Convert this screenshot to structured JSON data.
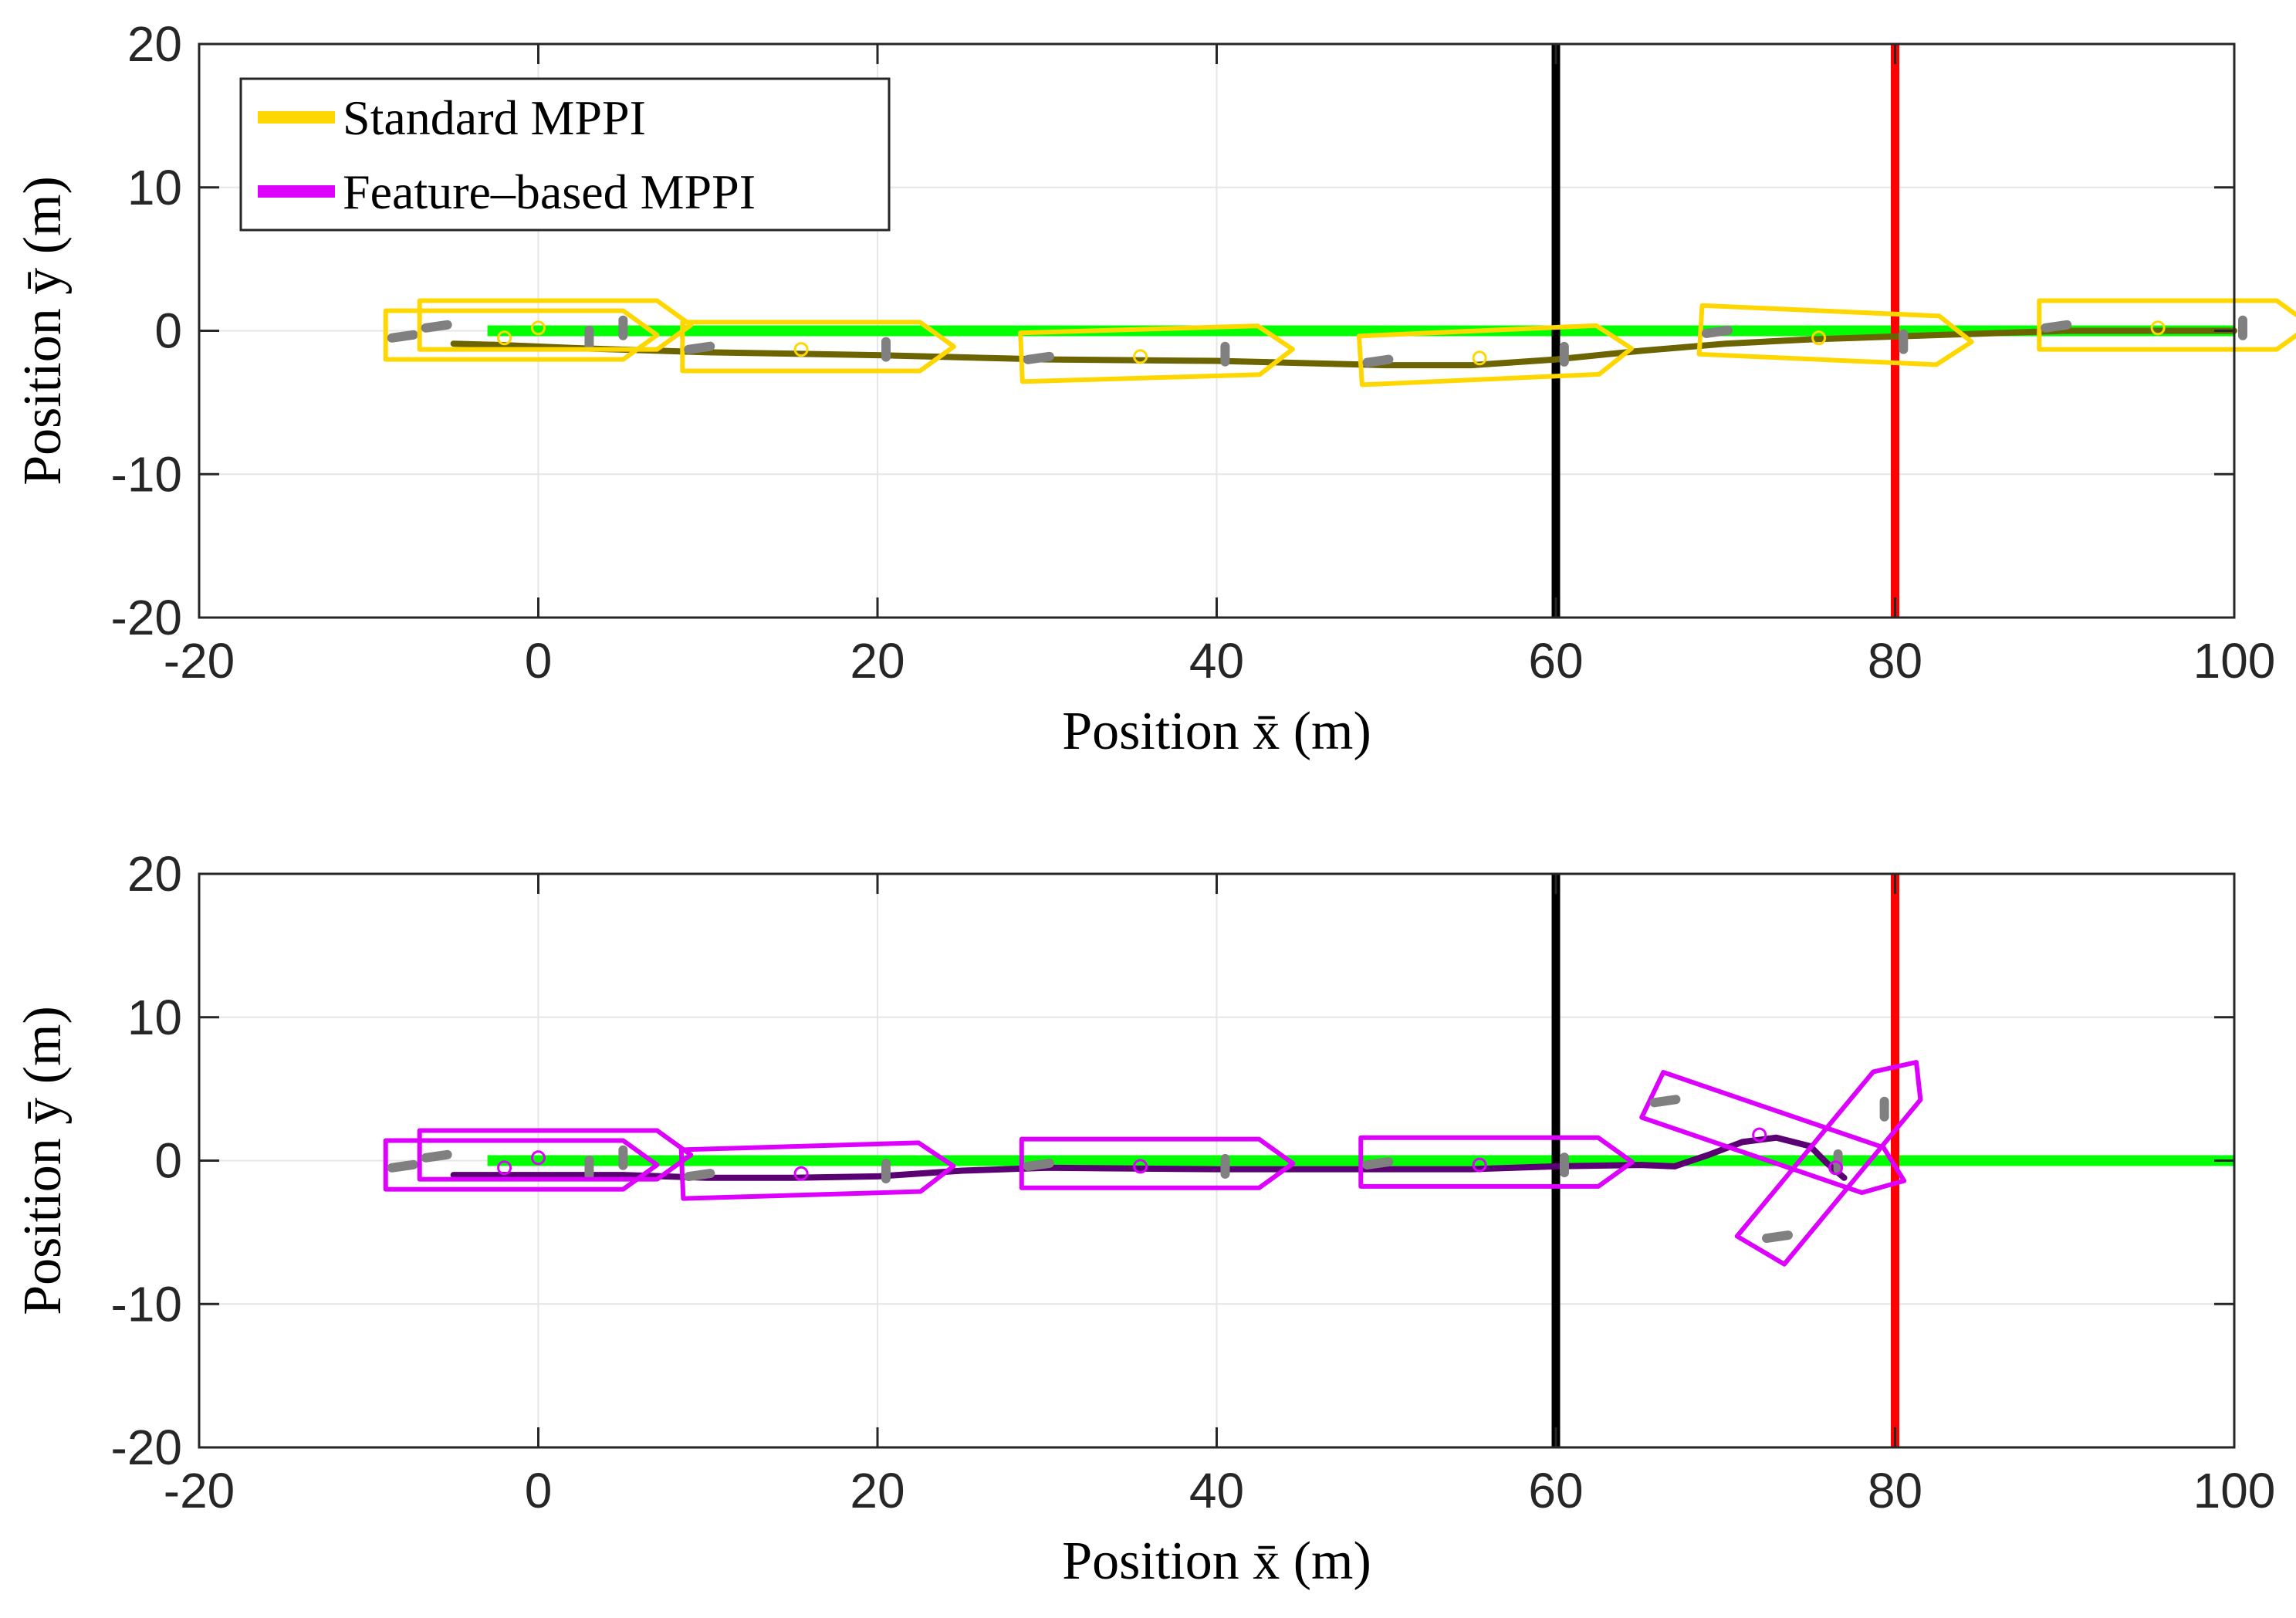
{
  "chart_data": [
    {
      "type": "line",
      "panel": "top",
      "xlabel": "Position x̄ (m)",
      "ylabel": "Position ȳ (m)",
      "xlim": [
        -20,
        100
      ],
      "ylim": [
        -20,
        20
      ],
      "xticks": [
        -20,
        0,
        20,
        40,
        60,
        80,
        100
      ],
      "yticks": [
        -20,
        -10,
        0,
        10,
        20
      ],
      "xtick_labels": [
        "-20",
        "0",
        "20",
        "40",
        "60",
        "80",
        "100"
      ],
      "ytick_labels": [
        "-20",
        "-10",
        "0",
        "10",
        "20"
      ],
      "grid": true,
      "legend": {
        "placement": "top-left",
        "entries": [
          {
            "label": "Standard MPPI",
            "color": "#ffd700"
          },
          {
            "label": "Feature–based MPPI",
            "color": "#dd00ff"
          }
        ]
      },
      "reference_line": {
        "name": "reference path",
        "y": 0,
        "x_range": [
          -3,
          100
        ],
        "color": "#00ff00"
      },
      "vertical_lines": [
        {
          "name": "black line",
          "x": 60,
          "color": "#000000"
        },
        {
          "name": "red line",
          "x": 80,
          "color": "#ff0000"
        }
      ],
      "series": [
        {
          "name": "Standard MPPI trajectory",
          "color": "#6b6400",
          "x": [
            -5,
            -2,
            2,
            10,
            20,
            30,
            40,
            50,
            55,
            60,
            65,
            70,
            75,
            80,
            85,
            90,
            95,
            100
          ],
          "y": [
            -0.9,
            -1.0,
            -1.2,
            -1.5,
            -1.7,
            -2.0,
            -2.1,
            -2.4,
            -2.4,
            -2.0,
            -1.4,
            -0.9,
            -0.6,
            -0.4,
            -0.2,
            0,
            0,
            0
          ]
        }
      ],
      "vessel_poses": [
        {
          "x": -2,
          "y": -0.8,
          "heading_deg": 0
        },
        {
          "x": 0,
          "y": -0.1,
          "heading_deg": 0
        },
        {
          "x": 15.5,
          "y": -1.6,
          "heading_deg": 0
        },
        {
          "x": 35.5,
          "y": -2.1,
          "heading_deg": 2
        },
        {
          "x": 55.5,
          "y": -2.2,
          "heading_deg": 3
        },
        {
          "x": 75.5,
          "y": -0.8,
          "heading_deg": -3
        },
        {
          "x": 95.5,
          "y": -0.1,
          "heading_deg": 0
        }
      ]
    },
    {
      "type": "line",
      "panel": "bottom",
      "xlabel": "Position x̄ (m)",
      "ylabel": "Position ȳ (m)",
      "xlim": [
        -20,
        100
      ],
      "ylim": [
        -20,
        20
      ],
      "xticks": [
        -20,
        0,
        20,
        40,
        60,
        80,
        100
      ],
      "yticks": [
        -20,
        -10,
        0,
        10,
        20
      ],
      "xtick_labels": [
        "-20",
        "0",
        "20",
        "40",
        "60",
        "80",
        "100"
      ],
      "ytick_labels": [
        "-20",
        "-10",
        "0",
        "10",
        "20"
      ],
      "grid": true,
      "reference_line": {
        "name": "reference path",
        "y": 0,
        "x_range": [
          -3,
          100
        ],
        "color": "#00ff00"
      },
      "vertical_lines": [
        {
          "name": "black line",
          "x": 60,
          "color": "#000000"
        },
        {
          "name": "red line",
          "x": 80,
          "color": "#ff0000"
        }
      ],
      "series": [
        {
          "name": "Feature-based MPPI trajectory",
          "color": "#5a0072",
          "x": [
            -5,
            0,
            5,
            10,
            15,
            20,
            25,
            30,
            40,
            50,
            55,
            60,
            65,
            67,
            69,
            71,
            73,
            75,
            76,
            77
          ],
          "y": [
            -1.0,
            -1.0,
            -1.0,
            -1.2,
            -1.2,
            -1.1,
            -0.7,
            -0.5,
            -0.6,
            -0.6,
            -0.6,
            -0.4,
            -0.3,
            -0.4,
            0.4,
            1.3,
            1.6,
            1.0,
            -0.2,
            -1.2
          ]
        }
      ],
      "vessel_poses": [
        {
          "x": -2,
          "y": -0.8,
          "heading_deg": 0
        },
        {
          "x": 0,
          "y": -0.1,
          "heading_deg": 0
        },
        {
          "x": 15.5,
          "y": -1.2,
          "heading_deg": 2
        },
        {
          "x": 35.5,
          "y": -0.7,
          "heading_deg": 0
        },
        {
          "x": 55.5,
          "y": -0.6,
          "heading_deg": 0
        },
        {
          "x": 72,
          "y": 1.5,
          "heading_deg": -22
        },
        {
          "x": 76.5,
          "y": -0.8,
          "heading_deg": 55
        }
      ]
    }
  ]
}
